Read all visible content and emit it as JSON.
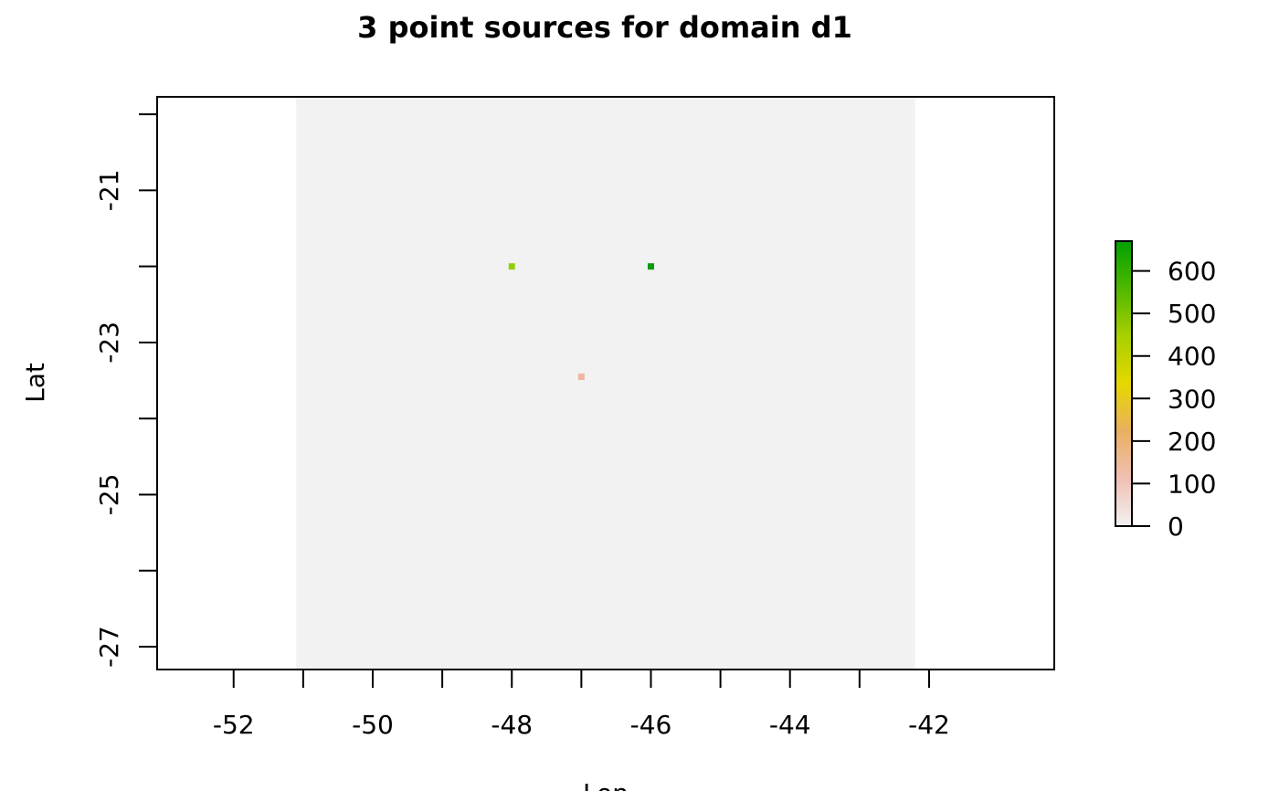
{
  "chart_data": {
    "type": "heatmap",
    "title": "3 point sources for domain d1",
    "xlabel": "Lon",
    "ylabel": "Lat",
    "xlim": [
      -53.1,
      -40.2
    ],
    "ylim": [
      -27.3,
      -19.77
    ],
    "x_ticks": [
      -52,
      -51,
      -50,
      -49,
      -48,
      -47,
      -46,
      -45,
      -44,
      -43,
      -42
    ],
    "x_tick_labels": [
      "-52",
      "-50",
      "-48",
      "-46",
      "-44",
      "-42"
    ],
    "x_tick_label_values": [
      -52,
      -50,
      -48,
      -46,
      -44,
      -42
    ],
    "y_ticks": [
      -27,
      -26,
      -25,
      -24,
      -23,
      -22,
      -21,
      -20
    ],
    "y_tick_labels": [
      "-27",
      "-25",
      "-23",
      "-21"
    ],
    "y_tick_label_values": [
      -27,
      -25,
      -23,
      -21
    ],
    "domain_extent": {
      "lon": [
        -51.1,
        -42.2
      ],
      "lat": [
        -27.3,
        -19.77
      ]
    },
    "domain_fill": "#f2f2f2",
    "points": [
      {
        "lon": -48,
        "lat": -22,
        "value": 450,
        "color": "#8fcf12"
      },
      {
        "lon": -46,
        "lat": -22,
        "value": 670,
        "color": "#0b9b0b"
      },
      {
        "lon": -47,
        "lat": -23.45,
        "value": 110,
        "color": "#eeb6a0"
      }
    ],
    "colorbar": {
      "min": 0,
      "max": 670,
      "ticks": [
        0,
        100,
        200,
        300,
        400,
        500,
        600
      ],
      "tick_labels": [
        "0",
        "100",
        "200",
        "300",
        "400",
        "500",
        "600"
      ],
      "placement": "right",
      "colors": [
        "#f2f2f2",
        "#f0c0b4",
        "#e9b060",
        "#e5d800",
        "#a8d000",
        "#50b800",
        "#00a000"
      ]
    },
    "grid": false
  }
}
